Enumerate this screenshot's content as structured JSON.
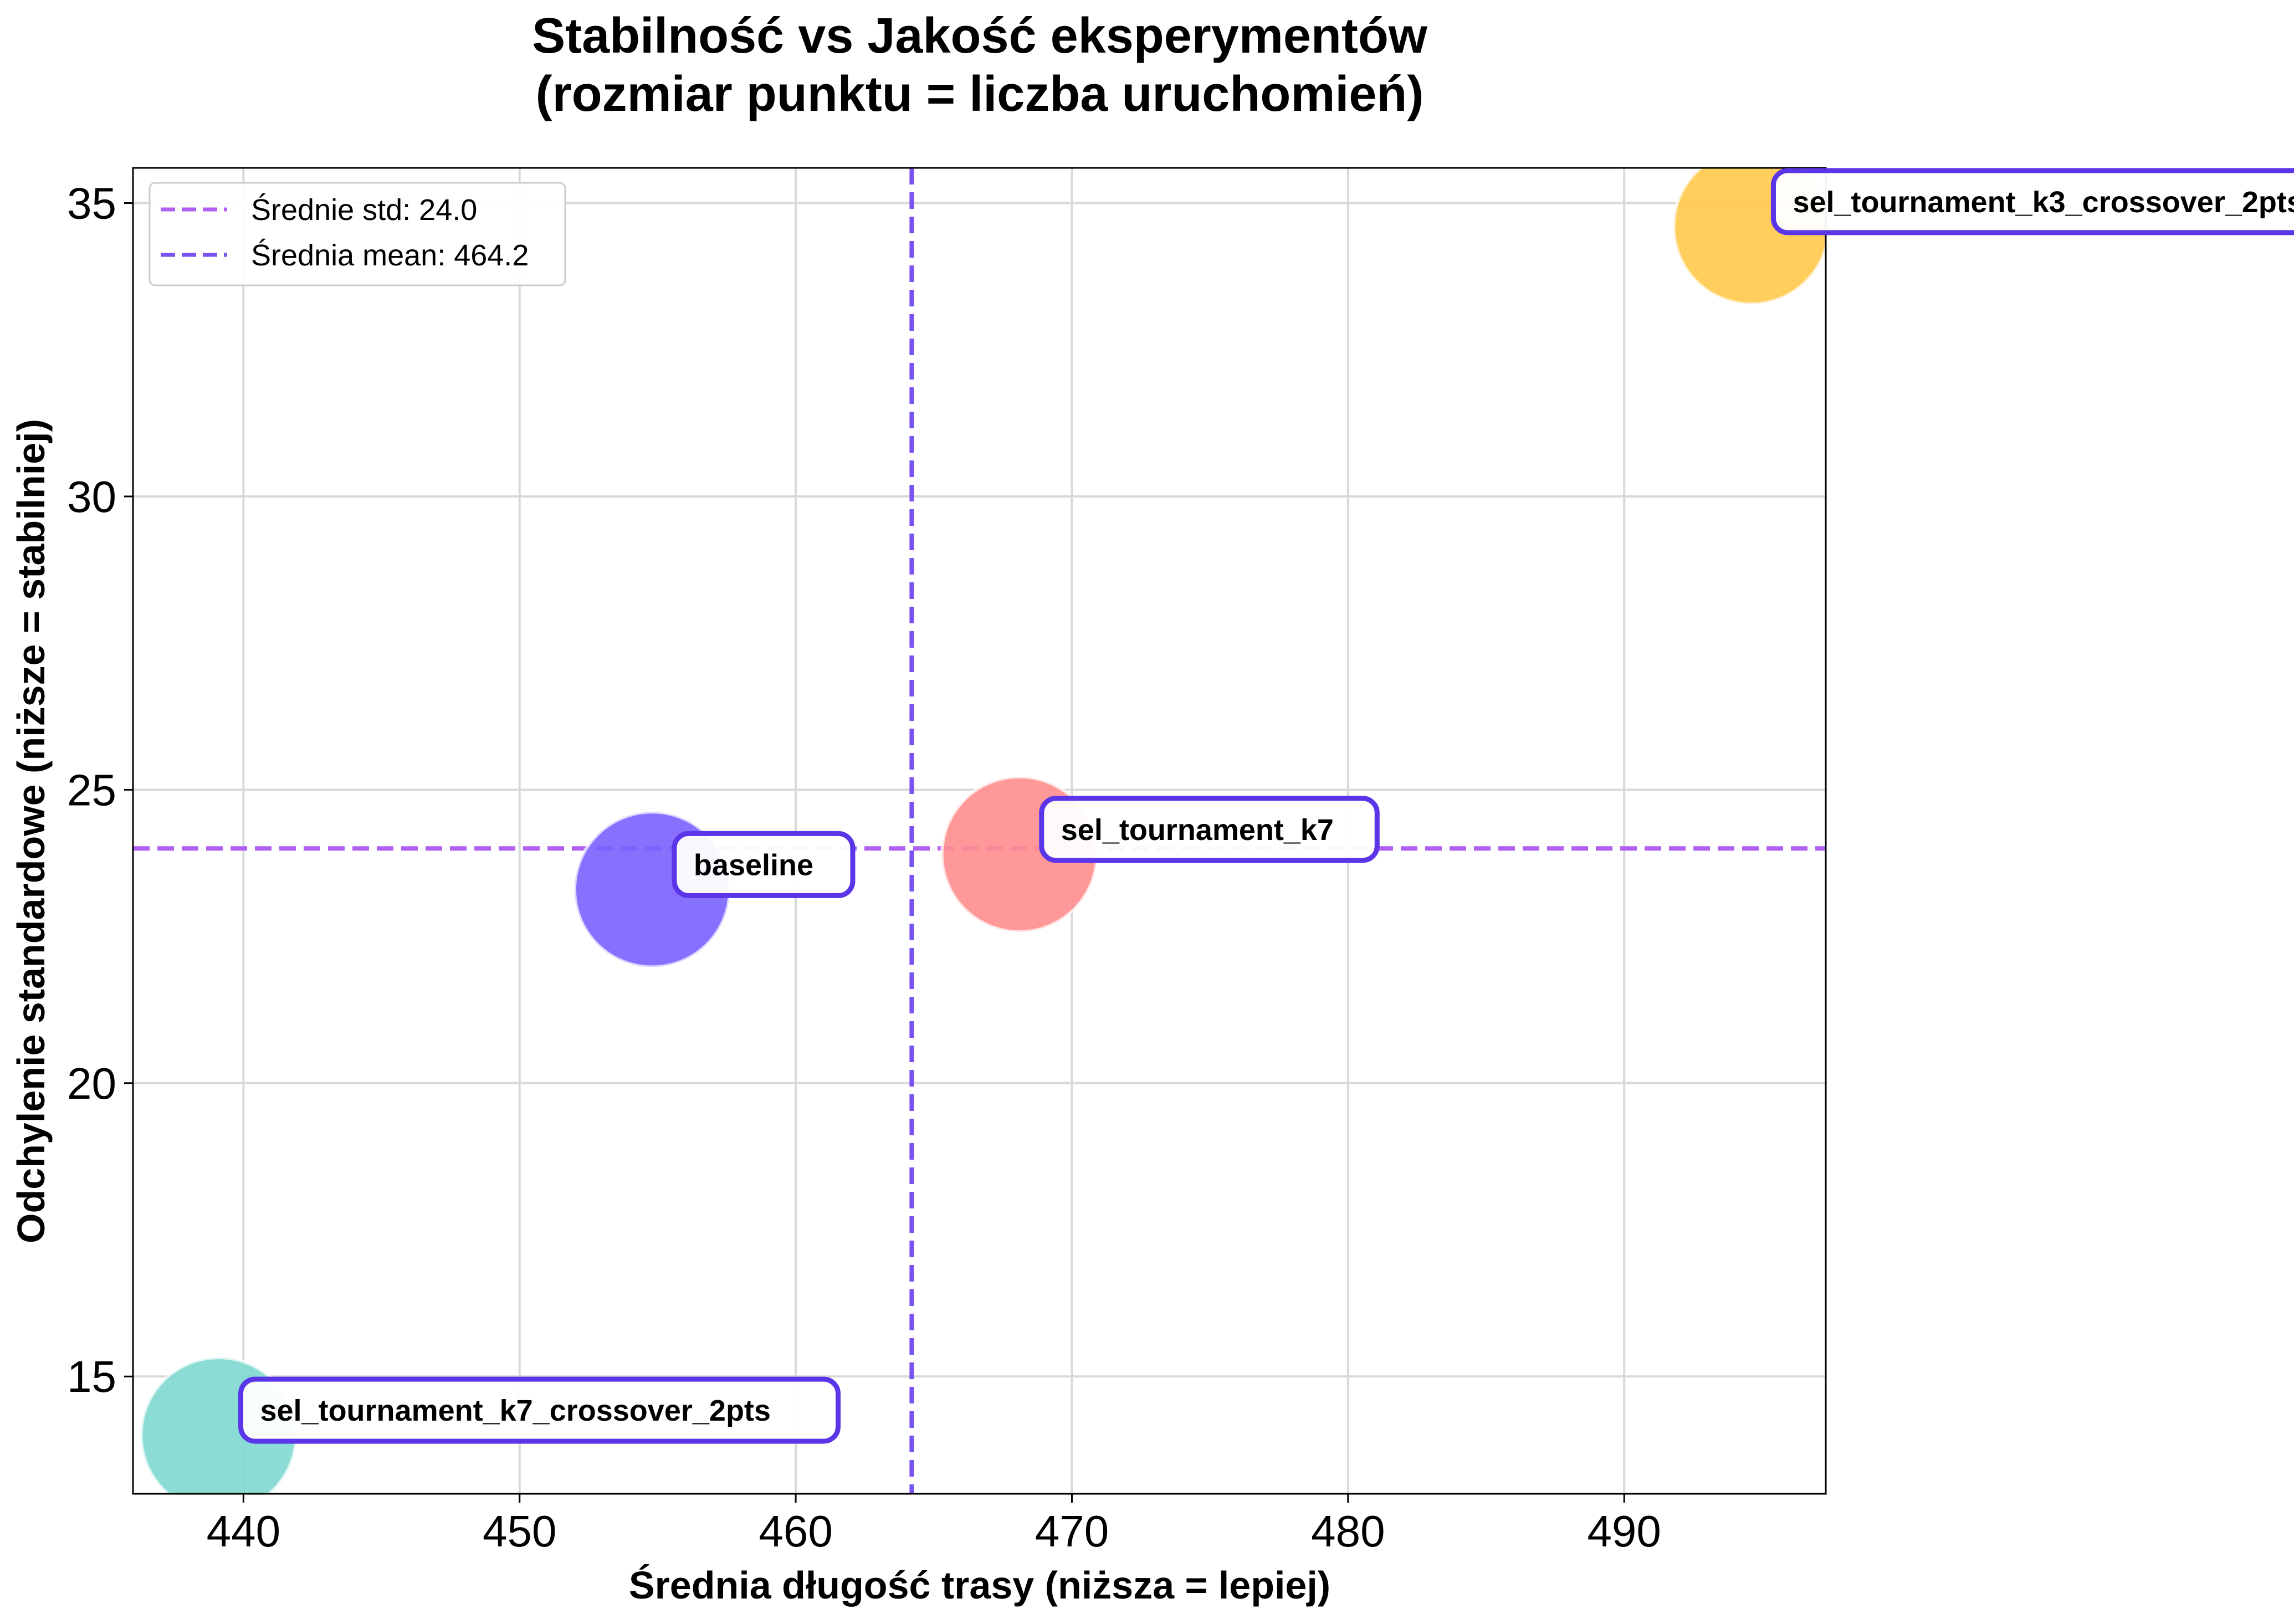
{
  "chart_data": {
    "type": "scatter",
    "title": "Stabilność vs Jakość eksperymentów",
    "subtitle": "(rozmiar punktu = liczba uruchomień)",
    "xlabel": "Średnia długość trasy (niższa = lepiej)",
    "ylabel": "Odchylenie standardowe (niższe = stabilniej)",
    "xlim": [
      436,
      497.3
    ],
    "ylim": [
      13,
      35.6
    ],
    "xticks": [
      440,
      450,
      460,
      470,
      480,
      490
    ],
    "yticks": [
      15,
      20,
      25,
      30,
      35
    ],
    "grid": true,
    "legend_position": "top-left",
    "points": [
      {
        "label": "baseline",
        "x": 454.8,
        "y": 23.3,
        "color": "#7B61FF"
      },
      {
        "label": "sel_tournament_k7",
        "x": 468.1,
        "y": 23.9,
        "color": "#FF8E8E"
      },
      {
        "label": "sel_tournament_k3_crossover_2pts",
        "x": 494.6,
        "y": 34.6,
        "color": "#FFC94A"
      },
      {
        "label": "sel_tournament_k7_crossover_2pts",
        "x": 439.1,
        "y": 14.0,
        "color": "#7ED8CF"
      }
    ],
    "reference_lines": [
      {
        "orientation": "horizontal",
        "value": 24.0,
        "label": "Średnie std: 24.0",
        "color": "#B060F0"
      },
      {
        "orientation": "vertical",
        "value": 464.2,
        "label": "Średnia mean: 464.2",
        "color": "#7B52F2"
      }
    ],
    "annotation_border_color": "#5B35E8"
  }
}
